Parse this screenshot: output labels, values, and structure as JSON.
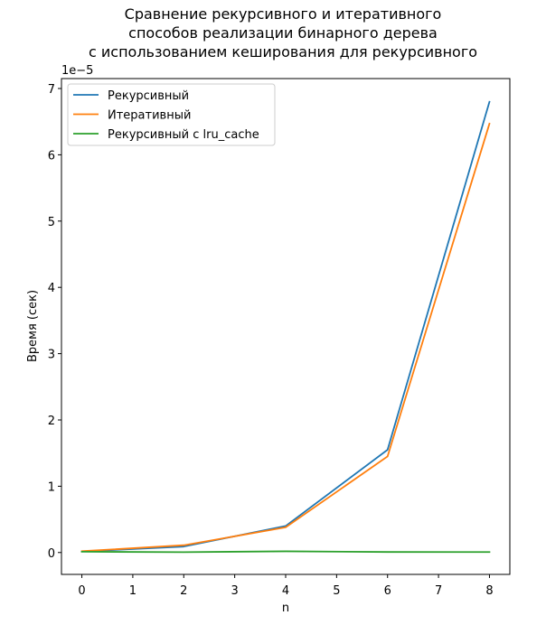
{
  "chart_data": {
    "type": "line",
    "title_lines": [
      "Сравнение рекурсивного и итеративного",
      "способов реализации бинарного дерева",
      "с использованием кеширования для рекурсивного"
    ],
    "xlabel": "n",
    "ylabel": "Время (сек)",
    "y_offset_label": "1e−5",
    "xlim": [
      -0.4,
      8.4
    ],
    "ylim": [
      -3.3e-06,
      7.15e-05
    ],
    "xticks": [
      0,
      1,
      2,
      3,
      4,
      5,
      6,
      7,
      8
    ],
    "xtick_labels": [
      "0",
      "1",
      "2",
      "3",
      "4",
      "5",
      "6",
      "7",
      "8"
    ],
    "yticks": [
      0,
      1e-05,
      2e-05,
      3e-05,
      4e-05,
      5e-05,
      6e-05,
      7e-05
    ],
    "ytick_labels": [
      "0",
      "1",
      "2",
      "3",
      "4",
      "5",
      "6",
      "7"
    ],
    "grid": false,
    "legend_position": "upper-left",
    "x": [
      0,
      2,
      4,
      6,
      8
    ],
    "series": [
      {
        "name": "Рекурсивный",
        "color": "#1f77b4",
        "values": [
          1.5e-07,
          9e-07,
          4e-06,
          1.55e-05,
          6.8e-05
        ]
      },
      {
        "name": "Итеративный",
        "color": "#ff7f0e",
        "values": [
          2e-07,
          1.1e-06,
          3.8e-06,
          1.45e-05,
          6.47e-05
        ]
      },
      {
        "name": "Рекурсивный с lru_cache",
        "color": "#2ca02c",
        "values": [
          1.2e-07,
          6e-08,
          1.8e-07,
          8e-08,
          7e-08
        ]
      }
    ]
  }
}
